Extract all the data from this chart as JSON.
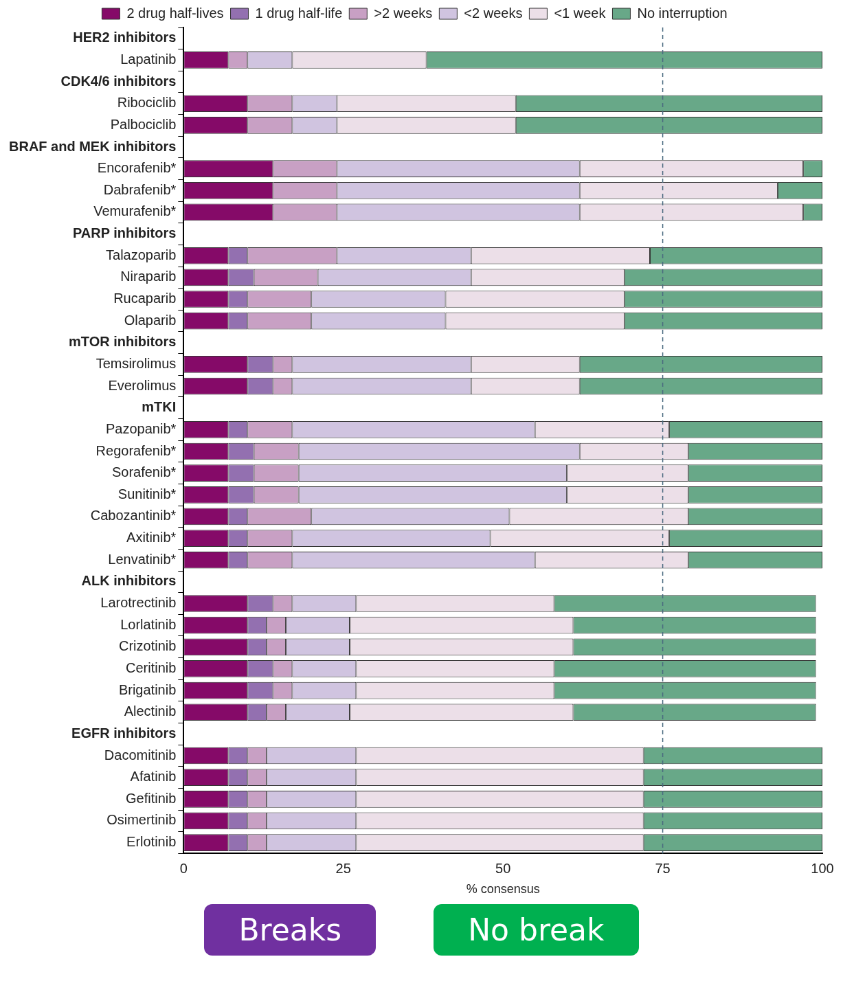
{
  "chart_data": {
    "type": "bar",
    "orientation": "horizontal",
    "stacked": true,
    "xlabel": "% consensus",
    "legend": "top",
    "categories": [
      "HER2 inhibitors",
      "Lapatinib",
      "CDK4/6 inhibitors",
      "Ribociclib",
      "Palbociclib",
      "BRAF and MEK inhibitors",
      "Encorafenib*",
      "Dabrafenib*",
      "Vemurafenib*",
      "PARP inhibitors",
      "Talazoparib",
      "Niraparib",
      "Rucaparib",
      "Olaparib",
      "mTOR inhibitors",
      "Temsirolimus",
      "Everolimus",
      "mTKI",
      "Pazopanib*",
      "Regorafenib*",
      "Sorafenib*",
      "Sunitinib*",
      "Cabozantinib*",
      "Axitinib*",
      "Lenvatinib*",
      "ALK inhibitors",
      "Larotrectinib",
      "Lorlatinib",
      "Crizotinib",
      "Ceritinib",
      "Brigatinib",
      "Alectinib",
      "EGFR inhibitors",
      "Dacomitinib",
      "Afatinib",
      "Gefitinib",
      "Osimertinib",
      "Erlotinib"
    ],
    "series": [
      {
        "name": "2 drug half-lives",
        "color": "#850a68",
        "values": [
          null,
          7,
          null,
          10,
          10,
          null,
          14,
          14,
          14,
          null,
          7,
          7,
          7,
          7,
          null,
          10,
          10,
          null,
          7,
          7,
          7,
          7,
          7,
          7,
          7,
          null,
          10,
          10,
          10,
          10,
          10,
          10,
          null,
          7,
          7,
          7,
          7,
          7
        ]
      },
      {
        "name": "1 drug half-life",
        "color": "#9370b0",
        "values": [
          null,
          0,
          null,
          0,
          0,
          null,
          0,
          0,
          0,
          null,
          3,
          4,
          3,
          3,
          null,
          4,
          4,
          null,
          3,
          4,
          4,
          4,
          3,
          3,
          3,
          null,
          4,
          3,
          3,
          4,
          4,
          3,
          null,
          3,
          3,
          3,
          3,
          3
        ]
      },
      {
        "name": ">2 weeks",
        "color": "#c8a0c4",
        "values": [
          null,
          3,
          null,
          7,
          7,
          null,
          10,
          10,
          10,
          null,
          14,
          10,
          10,
          10,
          null,
          3,
          3,
          null,
          7,
          7,
          7,
          7,
          10,
          7,
          7,
          null,
          3,
          3,
          3,
          3,
          3,
          3,
          null,
          3,
          3,
          3,
          3,
          3
        ]
      },
      {
        "name": "<2 weeks",
        "color": "#d0c4e0",
        "values": [
          null,
          7,
          null,
          7,
          7,
          null,
          38,
          38,
          38,
          null,
          21,
          24,
          21,
          21,
          null,
          28,
          28,
          null,
          38,
          44,
          42,
          42,
          31,
          31,
          38,
          null,
          10,
          10,
          10,
          10,
          10,
          10,
          null,
          14,
          14,
          14,
          14,
          14
        ]
      },
      {
        "name": "<1 week",
        "color": "#ecdfe8",
        "values": [
          null,
          21,
          null,
          28,
          28,
          null,
          35,
          31,
          35,
          null,
          28,
          24,
          28,
          28,
          null,
          17,
          17,
          null,
          21,
          17,
          19,
          19,
          28,
          28,
          24,
          null,
          31,
          35,
          35,
          31,
          31,
          35,
          null,
          45,
          45,
          45,
          45,
          45
        ]
      },
      {
        "name": "No interruption",
        "color": "#68a888",
        "values": [
          null,
          62,
          null,
          48,
          48,
          null,
          3,
          7,
          3,
          null,
          27,
          31,
          31,
          31,
          null,
          38,
          38,
          null,
          24,
          21,
          21,
          21,
          21,
          24,
          21,
          null,
          41,
          38,
          38,
          41,
          41,
          38,
          null,
          28,
          28,
          28,
          28,
          28
        ]
      }
    ],
    "xlim": [
      0,
      100
    ],
    "xticks": [
      0,
      25,
      50,
      75,
      100
    ],
    "grid": false,
    "ref_lines": [
      {
        "axis": "x",
        "value": 75,
        "color": "#4a6a80",
        "line_style": "dashed"
      }
    ],
    "annotations": [
      "Breaks",
      "No break"
    ]
  }
}
